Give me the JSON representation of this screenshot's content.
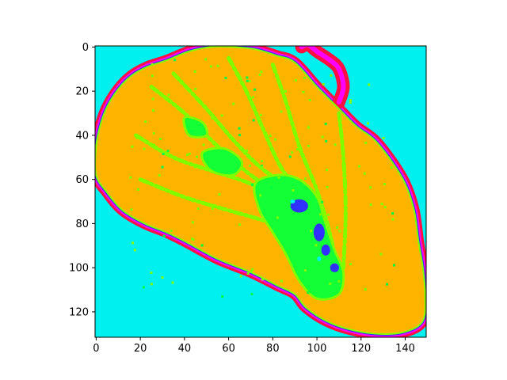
{
  "chart_data": {
    "type": "heatmap",
    "title": "",
    "xlabel": "",
    "ylabel": "",
    "xlim": [
      -0.5,
      149.5
    ],
    "ylim": [
      131.5,
      -0.5
    ],
    "x_ticks": [
      0,
      20,
      40,
      60,
      80,
      100,
      120,
      140
    ],
    "y_ticks": [
      0,
      20,
      40,
      60,
      80,
      100,
      120
    ],
    "grid": false,
    "legend": "none",
    "colorbar": false,
    "colormap_colors": [
      "#00f0f0",
      "#ffb400",
      "#80ff00",
      "#00ff40",
      "#3030ff",
      "#ff00ff",
      "#ff1040"
    ],
    "regions": [
      {
        "label": "background",
        "color": "#00f0f0"
      },
      {
        "label": "tissue-main",
        "color": "#ffb400"
      },
      {
        "label": "tissue-secondary",
        "color": "#80ff00"
      },
      {
        "label": "core",
        "color": "#00ff40"
      },
      {
        "label": "edge-inner",
        "color": "#3030ff"
      },
      {
        "label": "edge-middle",
        "color": "#ff00ff"
      },
      {
        "label": "edge-outer",
        "color": "#ff1040"
      }
    ],
    "outline": [
      [
        2,
        35
      ],
      [
        5,
        27
      ],
      [
        10,
        19
      ],
      [
        16,
        13
      ],
      [
        23,
        9
      ],
      [
        32,
        6
      ],
      [
        42,
        2
      ],
      [
        52,
        0
      ],
      [
        62,
        0
      ],
      [
        72,
        1
      ],
      [
        82,
        4
      ],
      [
        90,
        7
      ],
      [
        100,
        18
      ],
      [
        110,
        28
      ],
      [
        118,
        36
      ],
      [
        126,
        42
      ],
      [
        134,
        52
      ],
      [
        140,
        62
      ],
      [
        144,
        74
      ],
      [
        146,
        88
      ],
      [
        148,
        100
      ],
      [
        149,
        112
      ],
      [
        148,
        124
      ],
      [
        140,
        129
      ],
      [
        128,
        130
      ],
      [
        115,
        128
      ],
      [
        104,
        124
      ],
      [
        95,
        118
      ],
      [
        90,
        112
      ],
      [
        82,
        108
      ],
      [
        70,
        102
      ],
      [
        55,
        96
      ],
      [
        42,
        89
      ],
      [
        32,
        84
      ],
      [
        22,
        80
      ],
      [
        12,
        74
      ],
      [
        5,
        66
      ],
      [
        0,
        58
      ],
      [
        0,
        45
      ]
    ],
    "band_outline": [
      [
        93,
        0
      ],
      [
        96,
        -1
      ],
      [
        100,
        2
      ],
      [
        106,
        6
      ],
      [
        110,
        10
      ],
      [
        112,
        18
      ],
      [
        110,
        25
      ]
    ],
    "veins": [
      [
        [
          25,
          18
        ],
        [
          40,
          30
        ],
        [
          55,
          45
        ],
        [
          70,
          58
        ],
        [
          85,
          68
        ]
      ],
      [
        [
          35,
          12
        ],
        [
          50,
          28
        ],
        [
          62,
          42
        ],
        [
          75,
          55
        ],
        [
          90,
          65
        ]
      ],
      [
        [
          60,
          5
        ],
        [
          68,
          20
        ],
        [
          76,
          38
        ],
        [
          84,
          55
        ],
        [
          95,
          70
        ]
      ],
      [
        [
          80,
          8
        ],
        [
          86,
          25
        ],
        [
          92,
          45
        ],
        [
          100,
          65
        ],
        [
          106,
          85
        ],
        [
          110,
          105
        ]
      ],
      [
        [
          18,
          40
        ],
        [
          35,
          50
        ],
        [
          52,
          56
        ],
        [
          70,
          62
        ],
        [
          88,
          72
        ]
      ],
      [
        [
          110,
          30
        ],
        [
          112,
          50
        ],
        [
          113,
          75
        ],
        [
          112,
          100
        ]
      ],
      [
        [
          20,
          60
        ],
        [
          40,
          68
        ],
        [
          60,
          74
        ],
        [
          80,
          80
        ],
        [
          98,
          88
        ]
      ]
    ],
    "core_blobs": [
      [
        [
          72,
          62
        ],
        [
          82,
          58
        ],
        [
          92,
          60
        ],
        [
          100,
          68
        ],
        [
          104,
          80
        ],
        [
          108,
          92
        ],
        [
          112,
          102
        ],
        [
          110,
          112
        ],
        [
          100,
          114
        ],
        [
          92,
          106
        ],
        [
          86,
          94
        ],
        [
          80,
          84
        ],
        [
          74,
          74
        ]
      ],
      [
        [
          48,
          48
        ],
        [
          58,
          46
        ],
        [
          66,
          52
        ],
        [
          62,
          58
        ],
        [
          52,
          56
        ]
      ],
      [
        [
          40,
          32
        ],
        [
          48,
          34
        ],
        [
          50,
          40
        ],
        [
          42,
          40
        ]
      ]
    ],
    "blue_spots": [
      [
        92,
        72,
        4,
        3
      ],
      [
        101,
        84,
        2.5,
        4
      ],
      [
        104,
        92,
        2,
        2.5
      ],
      [
        108,
        100,
        2,
        2
      ]
    ]
  }
}
